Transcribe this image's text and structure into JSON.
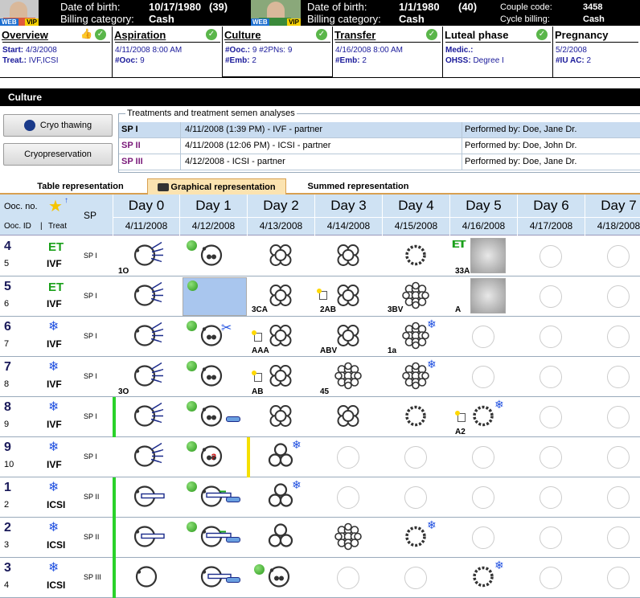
{
  "header": {
    "patient1": {
      "web": "WEB",
      "vip": "VIP",
      "dob_label": "Date of birth:",
      "dob": "10/17/1980",
      "age": "(39)",
      "billing_label": "Billing category:",
      "billing": "Cash"
    },
    "patient2": {
      "web": "WEB",
      "vip": "VIP",
      "dob_label": "Date of birth:",
      "dob": "1/1/1980",
      "age": "(40)",
      "billing_label": "Billing category:",
      "billing": "Cash"
    },
    "couple_code_label": "Couple code:",
    "couple_code": "3458",
    "cycle_billing_label": "Cycle billing:",
    "cycle_billing": "Cash"
  },
  "phases": [
    {
      "title": "Overview",
      "lines": [
        {
          "k": "Start:",
          "v": "4/3/2008"
        },
        {
          "k": "Treat.:",
          "v": "IVF,ICSI"
        }
      ]
    },
    {
      "title": "Aspiration",
      "lines": [
        {
          "k": "",
          "v": "4/11/2008 8:00 AM"
        },
        {
          "k": "#Ooc:",
          "v": "9"
        }
      ]
    },
    {
      "title": "Culture",
      "lines": [
        {
          "k": "#Ooc.:",
          "v": "9 #2PNs: 9"
        },
        {
          "k": "#Emb:",
          "v": "2"
        }
      ]
    },
    {
      "title": "Transfer",
      "lines": [
        {
          "k": "",
          "v": "4/16/2008 8:00 AM"
        },
        {
          "k": "#Emb:",
          "v": "2"
        }
      ]
    },
    {
      "title": "Luteal phase",
      "lines": [
        {
          "k": "Medic.:",
          "v": ""
        },
        {
          "k": "OHSS:",
          "v": "Degree I"
        }
      ]
    },
    {
      "title": "Pregnancy",
      "lines": [
        {
          "k": "",
          "v": "5/2/2008"
        },
        {
          "k": "#IU AC:",
          "v": "2"
        }
      ]
    }
  ],
  "section_title": "Culture",
  "buttons": {
    "cryo_thawing": "Cryo thawing",
    "cryopreservation": "Cryopreservation"
  },
  "treatments": {
    "legend": "Treatments and treatment semen analyses",
    "rows": [
      {
        "id": "SP I",
        "desc": "4/11/2008 (1:39 PM) - IVF - partner",
        "performed": "Performed by: Doe, Jane Dr."
      },
      {
        "id": "SP II",
        "desc": "4/11/2008 (12:06 PM) - ICSI - partner",
        "performed": "Performed by: Doe, John Dr."
      },
      {
        "id": "SP III",
        "desc": "4/12/2008 - ICSI - partner",
        "performed": "Performed by: Doe, Jane Dr."
      }
    ]
  },
  "tabs": {
    "table": "Table representation",
    "graphical": "Graphical representation",
    "summed": "Summed representation"
  },
  "grid": {
    "ooc_no": "Ooc. no.",
    "ooc_id": "Ooc. ID",
    "sep": "|",
    "treat": "Treat",
    "sp": "SP",
    "days": [
      {
        "day": "Day 0",
        "date": "4/11/2008"
      },
      {
        "day": "Day 1",
        "date": "4/12/2008"
      },
      {
        "day": "Day 2",
        "date": "4/13/2008"
      },
      {
        "day": "Day 3",
        "date": "4/14/2008"
      },
      {
        "day": "Day 4",
        "date": "4/15/2008"
      },
      {
        "day": "Day 5",
        "date": "4/16/2008"
      },
      {
        "day": "Day 6",
        "date": "4/17/2008"
      },
      {
        "day": "Day 7",
        "date": "4/18/2008"
      }
    ],
    "rows": [
      {
        "ooc": "4",
        "id": "5",
        "icon": "ET",
        "treat": "IVF",
        "sp": "SP I"
      },
      {
        "ooc": "5",
        "id": "6",
        "icon": "ET",
        "treat": "IVF",
        "sp": "SP I"
      },
      {
        "ooc": "6",
        "id": "7",
        "icon": "❄",
        "treat": "IVF",
        "sp": "SP I"
      },
      {
        "ooc": "7",
        "id": "8",
        "icon": "❄",
        "treat": "IVF",
        "sp": "SP I"
      },
      {
        "ooc": "8",
        "id": "9",
        "icon": "❄",
        "treat": "IVF",
        "sp": "SP I"
      },
      {
        "ooc": "9",
        "id": "10",
        "icon": "❄",
        "treat": "IVF",
        "sp": "SP I"
      },
      {
        "ooc": "1",
        "id": "2",
        "icon": "❄",
        "treat": "ICSI",
        "sp": "SP II"
      },
      {
        "ooc": "2",
        "id": "3",
        "icon": "❄",
        "treat": "ICSI",
        "sp": "SP II"
      },
      {
        "ooc": "3",
        "id": "4",
        "icon": "❄",
        "treat": "ICSI",
        "sp": "SP III"
      }
    ],
    "labels": {
      "r0d0": "1O",
      "r0d5": "33A",
      "r1d2": "3CA",
      "r1d3": "2AB",
      "r1d4": "3BV",
      "r1d5": "A",
      "r2d2": "AAA",
      "r2d3": "ABV",
      "r2d4": "1a",
      "r3d0": "3O",
      "r3d2": "AB",
      "r3d3": "45",
      "r4d5": "A2"
    }
  },
  "colors": {
    "accent_green": "#1aa01a",
    "snow_blue": "#2050e0",
    "header_blue": "#cfe2f3",
    "tab_active": "#fbe3b0"
  }
}
